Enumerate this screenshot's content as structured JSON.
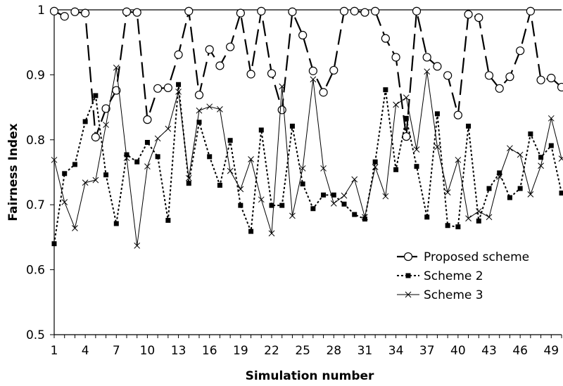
{
  "chart_data": {
    "type": "line",
    "title": "",
    "xlabel": "Simulation number",
    "ylabel": "Fairness Index",
    "xlim": [
      1,
      50
    ],
    "ylim": [
      0.5,
      1
    ],
    "y_ticks": [
      0.5,
      0.6,
      0.7,
      0.8,
      0.9,
      1
    ],
    "y_tick_labels": [
      "0.5",
      "0.6",
      "0.7",
      "0.8",
      "0.9",
      "1"
    ],
    "x_ticks": [
      1,
      4,
      7,
      10,
      13,
      16,
      19,
      22,
      25,
      28,
      31,
      34,
      37,
      40,
      43,
      46,
      49
    ],
    "x_tick_labels": [
      "1",
      "4",
      "7",
      "10",
      "13",
      "16",
      "19",
      "22",
      "25",
      "28",
      "31",
      "34",
      "37",
      "40",
      "43",
      "46",
      "49"
    ],
    "grid": false,
    "legend_position": "lower-right",
    "x": [
      1,
      2,
      3,
      4,
      5,
      6,
      7,
      8,
      9,
      10,
      11,
      12,
      13,
      14,
      15,
      16,
      17,
      18,
      19,
      20,
      21,
      22,
      23,
      24,
      25,
      26,
      27,
      28,
      29,
      30,
      31,
      32,
      33,
      34,
      35,
      36,
      37,
      38,
      39,
      40,
      41,
      42,
      43,
      44,
      45,
      46,
      47,
      48,
      49,
      50
    ],
    "series": [
      {
        "name": "Proposed scheme",
        "style": "dashed",
        "marker": "open-circle",
        "color": "#000000",
        "values": [
          0.998,
          0.99,
          0.997,
          0.995,
          0.804,
          0.848,
          0.876,
          0.997,
          0.996,
          0.831,
          0.879,
          0.88,
          0.931,
          0.998,
          0.869,
          0.939,
          0.914,
          0.943,
          0.995,
          0.901,
          0.998,
          0.902,
          0.846,
          0.997,
          0.961,
          0.906,
          0.873,
          0.907,
          0.998,
          0.998,
          0.996,
          0.998,
          0.956,
          0.927,
          0.805,
          0.998,
          0.927,
          0.913,
          0.899,
          0.838,
          0.993,
          0.988,
          0.899,
          0.879,
          0.897,
          0.937,
          0.998,
          0.892,
          0.895,
          0.881
        ]
      },
      {
        "name": "Scheme 2",
        "style": "dotted",
        "marker": "filled-square",
        "color": "#000000",
        "values": [
          0.64,
          0.748,
          0.762,
          0.828,
          0.868,
          0.746,
          0.671,
          0.777,
          0.766,
          0.796,
          0.774,
          0.676,
          0.885,
          0.733,
          0.827,
          0.774,
          0.73,
          0.799,
          0.699,
          0.659,
          0.815,
          0.699,
          0.699,
          0.821,
          0.732,
          0.694,
          0.715,
          0.715,
          0.701,
          0.685,
          0.678,
          0.766,
          0.877,
          0.754,
          0.833,
          0.759,
          0.681,
          0.84,
          0.668,
          0.666,
          0.821,
          0.675,
          0.725,
          0.749,
          0.711,
          0.725,
          0.809,
          0.773,
          0.791,
          0.718
        ]
      },
      {
        "name": "Scheme 3",
        "style": "solid-thin",
        "marker": "x",
        "color": "#000000",
        "values": [
          0.769,
          0.704,
          0.664,
          0.734,
          0.738,
          0.823,
          0.911,
          0.772,
          0.637,
          0.759,
          0.802,
          0.817,
          0.874,
          0.741,
          0.845,
          0.851,
          0.847,
          0.752,
          0.724,
          0.77,
          0.708,
          0.656,
          0.882,
          0.683,
          0.756,
          0.893,
          0.756,
          0.702,
          0.714,
          0.739,
          0.681,
          0.758,
          0.713,
          0.854,
          0.865,
          0.785,
          0.905,
          0.789,
          0.719,
          0.769,
          0.679,
          0.69,
          0.681,
          0.743,
          0.787,
          0.777,
          0.716,
          0.76,
          0.833,
          0.771
        ]
      }
    ]
  }
}
